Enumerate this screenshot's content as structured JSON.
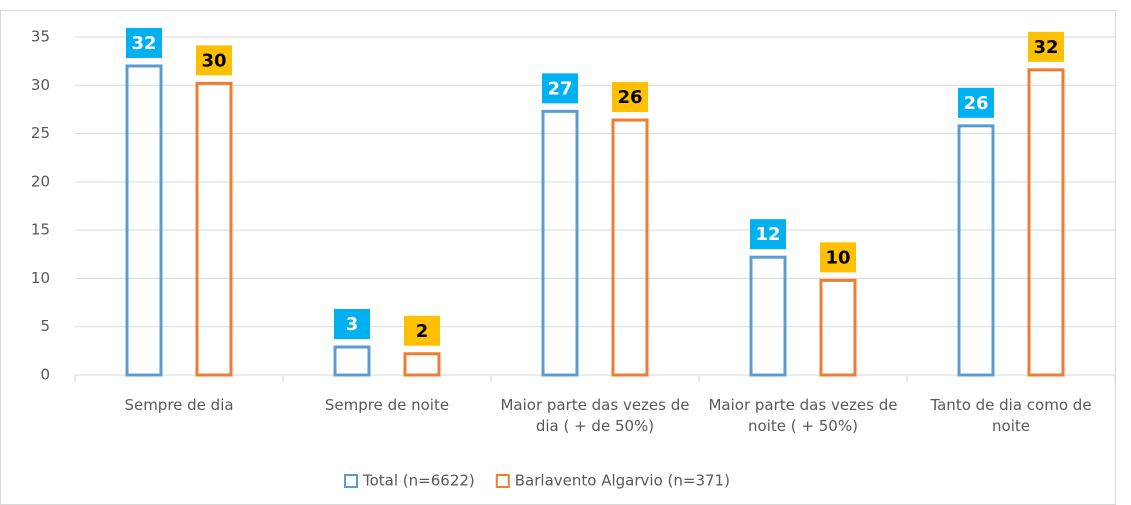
{
  "chart_data": {
    "type": "bar",
    "categories": [
      "Sempre de dia",
      "Sempre de noite",
      "Maior parte das vezes de dia ( + de 50%)",
      "Maior parte das vezes de noite ( + 50%)",
      "Tanto de dia como de noite"
    ],
    "series": [
      {
        "name": "Total (n=6622)",
        "color": "#5b9bd5",
        "label_color": "#00b0f0",
        "label_text_color": "#ffffff",
        "values": [
          32.0,
          2.9,
          27.3,
          12.2,
          25.8
        ],
        "value_labels": [
          "32",
          "3",
          "27",
          "12",
          "26"
        ]
      },
      {
        "name": "Barlavento Algarvio (n=371)",
        "color": "#ed7d31",
        "label_color": "#ffc000",
        "label_text_color": "#000000",
        "values": [
          30.2,
          2.2,
          26.4,
          9.8,
          31.6
        ],
        "value_labels": [
          "30",
          "2",
          "26",
          "10",
          "32"
        ]
      }
    ],
    "ylim": [
      0,
      35
    ],
    "yticks": [
      0,
      5,
      10,
      15,
      20,
      25,
      30,
      35
    ],
    "grid": true,
    "legend": "bottom"
  }
}
